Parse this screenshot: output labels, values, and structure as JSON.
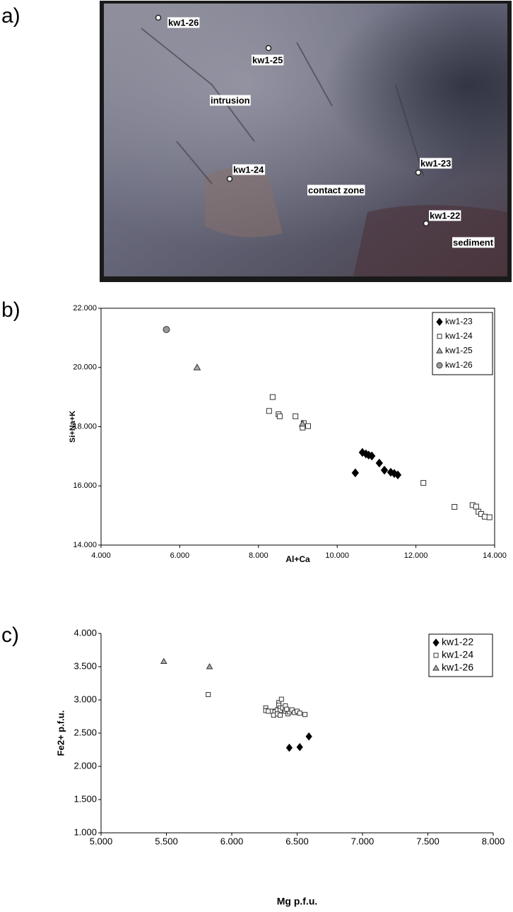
{
  "photo": {
    "panel_label": "a)",
    "labels": [
      "kw1-26",
      "kw1-25",
      "intrusion",
      "kw1-24",
      "contact zone",
      "kw1-23",
      "kw1-22",
      "sediment"
    ]
  },
  "chart_data": [
    {
      "type": "scatter",
      "panel_label": "b)",
      "x_label": "Al+Ca",
      "y_label": "Si+Na+K",
      "xlim": [
        4,
        14
      ],
      "ylim": [
        14,
        22
      ],
      "xticks": [
        {
          "value": 4,
          "label": "4.000"
        },
        {
          "value": 6,
          "label": "6.000"
        },
        {
          "value": 8,
          "label": "8.000"
        },
        {
          "value": 10,
          "label": "10.000"
        },
        {
          "value": 12,
          "label": "12.000"
        },
        {
          "value": 14,
          "label": "14.000"
        }
      ],
      "yticks": [
        {
          "value": 14,
          "label": "14.000"
        },
        {
          "value": 16,
          "label": "16.000"
        },
        {
          "value": 18,
          "label": "18.000"
        },
        {
          "value": 20,
          "label": "20.000"
        },
        {
          "value": 22,
          "label": "22.000"
        }
      ],
      "frame": true,
      "legend": "top-right",
      "series": [
        {
          "name": "kw1-23",
          "marker": "diamond",
          "color": "#000000",
          "x": [
            10.46,
            10.64,
            10.73,
            10.8,
            10.88,
            11.07,
            11.2,
            11.36,
            11.45,
            11.54
          ],
          "y": [
            16.44,
            17.13,
            17.08,
            17.04,
            17.01,
            16.77,
            16.53,
            16.46,
            16.42,
            16.37
          ]
        },
        {
          "name": "kw1-24",
          "marker": "square",
          "color": "#ffffff",
          "x": [
            8.36,
            8.27,
            8.51,
            8.54,
            8.94,
            9.15,
            9.26,
            9.12,
            12.19,
            12.98,
            13.44,
            13.53,
            13.59,
            13.66,
            13.75,
            13.87
          ],
          "y": [
            19.0,
            18.53,
            18.42,
            18.35,
            18.35,
            18.12,
            18.02,
            17.97,
            16.1,
            15.29,
            15.35,
            15.3,
            15.13,
            15.05,
            14.96,
            14.94
          ]
        },
        {
          "name": "kw1-25",
          "marker": "triangle",
          "color": "#aaaaaa",
          "x": [
            6.44,
            9.12
          ],
          "y": [
            20.0,
            18.1
          ]
        },
        {
          "name": "kw1-26",
          "marker": "circle",
          "color": "#999999",
          "x": [
            5.66
          ],
          "y": [
            21.28
          ]
        }
      ]
    },
    {
      "type": "scatter",
      "panel_label": "c)",
      "x_label": "Mg p.f.u.",
      "y_label": "Fe2+ p.f.u.",
      "xlim": [
        5,
        8
      ],
      "ylim": [
        1,
        4
      ],
      "xticks": [
        {
          "value": 5,
          "label": "5.000"
        },
        {
          "value": 5.5,
          "label": "5.500"
        },
        {
          "value": 6,
          "label": "6.000"
        },
        {
          "value": 6.5,
          "label": "6.500"
        },
        {
          "value": 7,
          "label": "7.000"
        },
        {
          "value": 7.5,
          "label": "7.500"
        },
        {
          "value": 8,
          "label": "8.000"
        }
      ],
      "yticks": [
        {
          "value": 1,
          "label": "1.000"
        },
        {
          "value": 1.5,
          "label": "1.500"
        },
        {
          "value": 2,
          "label": "2.000"
        },
        {
          "value": 2.5,
          "label": "2.500"
        },
        {
          "value": 3,
          "label": "3.000"
        },
        {
          "value": 3.5,
          "label": "3.500"
        },
        {
          "value": 4,
          "label": "4.000"
        }
      ],
      "frame": false,
      "legend": "top-right",
      "series": [
        {
          "name": "kw1-22",
          "marker": "diamond",
          "color": "#000000",
          "x": [
            6.44,
            6.52,
            6.59
          ],
          "y": [
            2.28,
            2.29,
            2.45
          ]
        },
        {
          "name": "kw1-24",
          "marker": "square",
          "color": "#ffffff",
          "x": [
            5.82,
            6.26,
            6.26,
            6.28,
            6.31,
            6.33,
            6.35,
            6.36,
            6.36,
            6.37,
            6.37,
            6.39,
            6.41,
            6.43,
            6.44,
            6.46,
            6.48,
            6.5,
            6.52,
            6.56,
            6.32,
            6.35,
            6.37,
            6.41,
            6.42,
            6.38
          ],
          "y": [
            3.08,
            2.88,
            2.84,
            2.83,
            2.83,
            2.82,
            2.85,
            2.96,
            2.92,
            2.88,
            2.84,
            2.88,
            2.83,
            2.79,
            2.82,
            2.85,
            2.81,
            2.83,
            2.8,
            2.78,
            2.77,
            2.79,
            2.77,
            2.91,
            2.86,
            3.01
          ]
        },
        {
          "name": "kw1-26",
          "marker": "triangle",
          "color": "#aaaaaa",
          "x": [
            5.48,
            5.83
          ],
          "y": [
            3.58,
            3.5
          ]
        }
      ]
    }
  ]
}
